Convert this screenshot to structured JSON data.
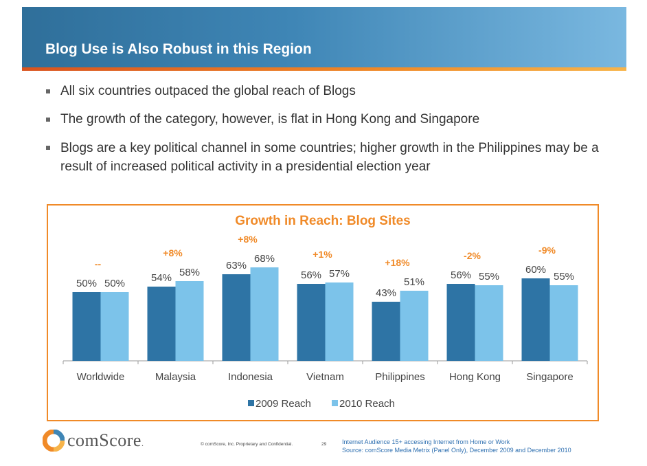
{
  "header": {
    "title": "Blog Use is Also Robust in this Region"
  },
  "bullets": [
    "All six countries outpaced the global reach of Blogs",
    "The growth of the category, however, is flat in Hong Kong and Singapore",
    "Blogs are a key political channel in some countries; higher growth in the Philippines may be a result of increased political activity in a presidential election year"
  ],
  "chart_data": {
    "type": "bar",
    "title": "Growth in Reach: Blog Sites",
    "categories": [
      "Worldwide",
      "Malaysia",
      "Indonesia",
      "Vietnam",
      "Philippines",
      "Hong Kong",
      "Singapore"
    ],
    "series": [
      {
        "name": "2009 Reach",
        "color": "#2e74a5",
        "values": [
          50,
          54,
          63,
          56,
          43,
          56,
          60
        ]
      },
      {
        "name": "2010 Reach",
        "color": "#7cc3ea",
        "values": [
          50,
          58,
          68,
          57,
          51,
          55,
          55
        ]
      }
    ],
    "value_labels": [
      [
        "50%",
        "54%",
        "63%",
        "56%",
        "43%",
        "56%",
        "60%"
      ],
      [
        "50%",
        "58%",
        "68%",
        "57%",
        "51%",
        "55%",
        "55%"
      ]
    ],
    "growth_labels": [
      "--",
      "+8%",
      "+8%",
      "+1%",
      "+18%",
      "-2%",
      "-9%"
    ],
    "growth_color": "#f08a28",
    "ylim": [
      0,
      100
    ],
    "xlabel": "",
    "ylabel": "",
    "grid": false,
    "legend_position": "bottom-center"
  },
  "footer": {
    "logo_text": "comScore",
    "logo_suffix": ".",
    "copyright": "© comScore, Inc.   Proprietary and Confidential.",
    "page_number": "29",
    "source_line1": "Internet Audience 15+ accessing Internet from Home or Work",
    "source_line2": "Source:  comScore Media Metrix (Panel Only), December 2009 and December 2010"
  },
  "colors": {
    "banner": "#3f86b6",
    "accent": "#f08a28",
    "text": "#333333"
  }
}
